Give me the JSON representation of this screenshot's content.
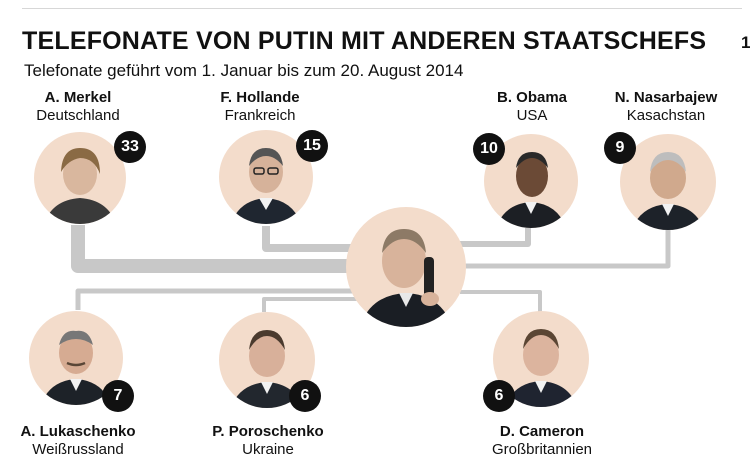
{
  "header": {
    "title": "TELEFONATE VON PUTIN MIT ANDEREN STAATSCHEFS",
    "subtitle": "Telefonate geführt vom 1. Januar bis zum 20. August 2014",
    "page_number": "1"
  },
  "leaders": {
    "merkel": {
      "name": "A. Merkel",
      "country": "Deutschland",
      "calls": "33"
    },
    "hollande": {
      "name": "F. Hollande",
      "country": "Frankreich",
      "calls": "15"
    },
    "obama": {
      "name": "B. Obama",
      "country": "USA",
      "calls": "10"
    },
    "nasarbajew": {
      "name": "N. Nasarbajew",
      "country": "Kasachstan",
      "calls": "9"
    },
    "lukaschenko": {
      "name": "A. Lukaschenko",
      "country": "Weißrussland",
      "calls": "7"
    },
    "poroschenko": {
      "name": "P. Poroschenko",
      "country": "Ukraine",
      "calls": "6"
    },
    "cameron": {
      "name": "D. Cameron",
      "country": "Großbritannien",
      "calls": "6"
    }
  },
  "colors": {
    "line": "#c8c8c8",
    "badge": "#111111",
    "portrait_bg": "#f3dccb"
  }
}
